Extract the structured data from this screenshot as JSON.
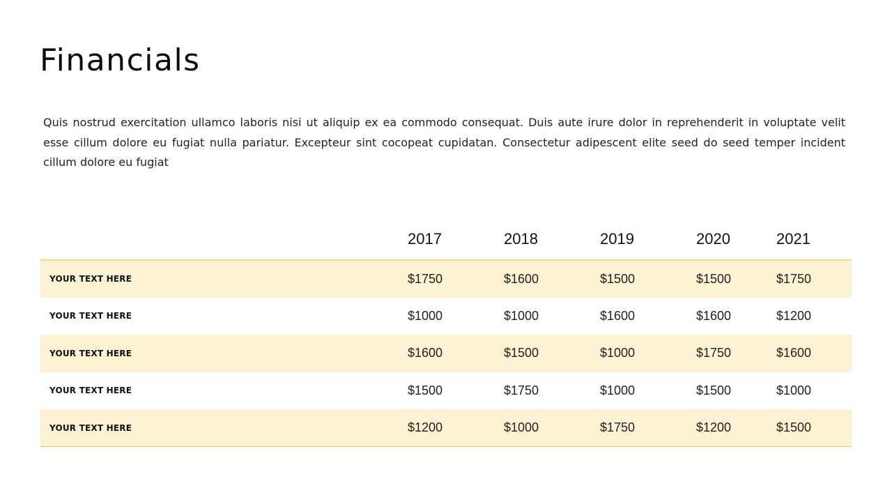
{
  "slide": {
    "title": "Financials",
    "body": "Quis nostrud exercitation ullamco laboris nisi ut aliquip ex ea commodo consequat. Duis aute irure dolor in reprehenderit in voluptate velit esse cillum dolore eu fugiat nulla pariatur. Excepteur sint cocopeat cupidatan. Consectetur adipescent elite seed do seed temper incident cillum dolore eu fugiat"
  },
  "table": {
    "columns": [
      "",
      "2017",
      "2018",
      "2019",
      "2020",
      "2021"
    ],
    "rows": [
      {
        "label": "YOUR TEXT HERE",
        "values": [
          "$1750",
          "$1600",
          "$1500",
          "$1500",
          "$1750"
        ]
      },
      {
        "label": "YOUR TEXT HERE",
        "values": [
          "$1000",
          "$1000",
          "$1600",
          "$1600",
          "$1200"
        ]
      },
      {
        "label": "YOUR TEXT HERE",
        "values": [
          "$1600",
          "$1500",
          "$1000",
          "$1750",
          "$1600"
        ]
      },
      {
        "label": "YOUR TEXT HERE",
        "values": [
          "$1500",
          "$1750",
          "$1000",
          "$1500",
          "$1000"
        ]
      },
      {
        "label": "YOUR TEXT HERE",
        "values": [
          "$1200",
          "$1000",
          "$1750",
          "$1200",
          "$1500"
        ]
      }
    ]
  },
  "colors": {
    "row_shade": "#fdf2d3",
    "accent_line": "#e5c86a",
    "text": "#111111"
  }
}
